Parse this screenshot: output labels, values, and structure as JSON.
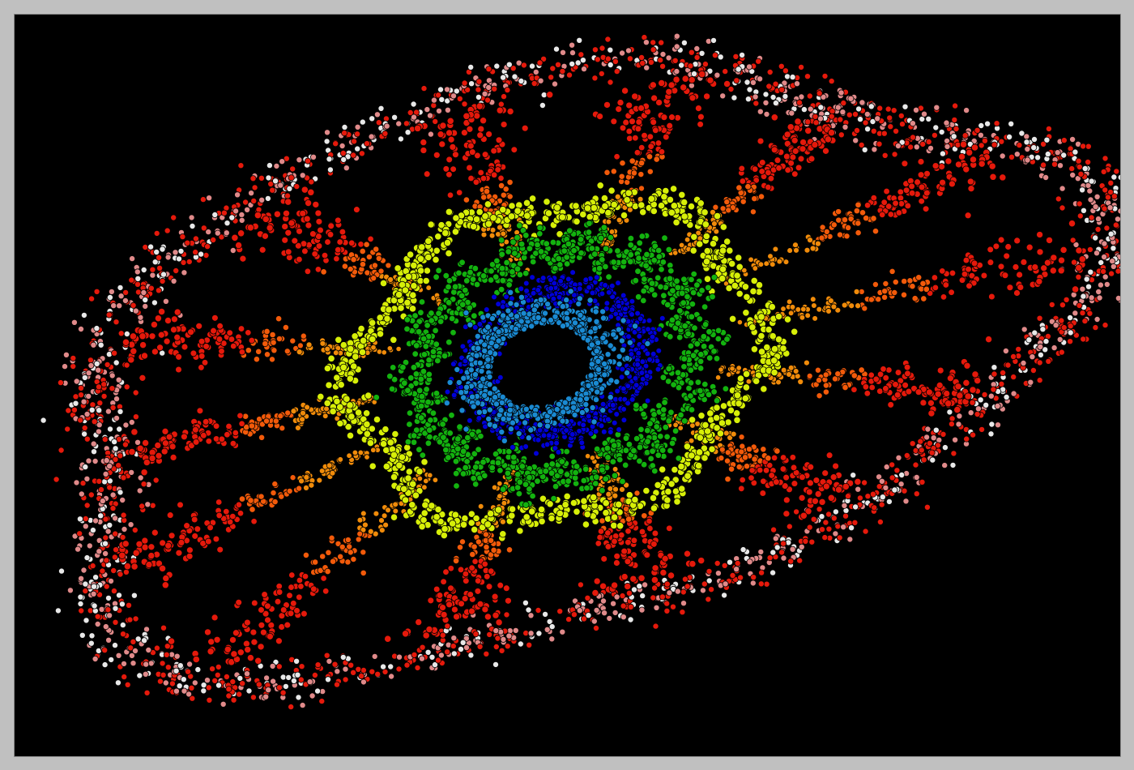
{
  "image": {
    "subject": "fractal",
    "palette": {
      "background": "#000000",
      "frame": "#c0c0c0",
      "core_cyan": "#1a8ad2",
      "core_blue": "#0000d8",
      "inner_green": "#13b20f",
      "ring_yellow": "#d7ef08",
      "spoke_orange": "#f08b0a",
      "spoke_red": "#e5190b",
      "outer_pink": "#e08a8a",
      "outer_white": "#e8e8e8",
      "outline": "#000000"
    }
  }
}
